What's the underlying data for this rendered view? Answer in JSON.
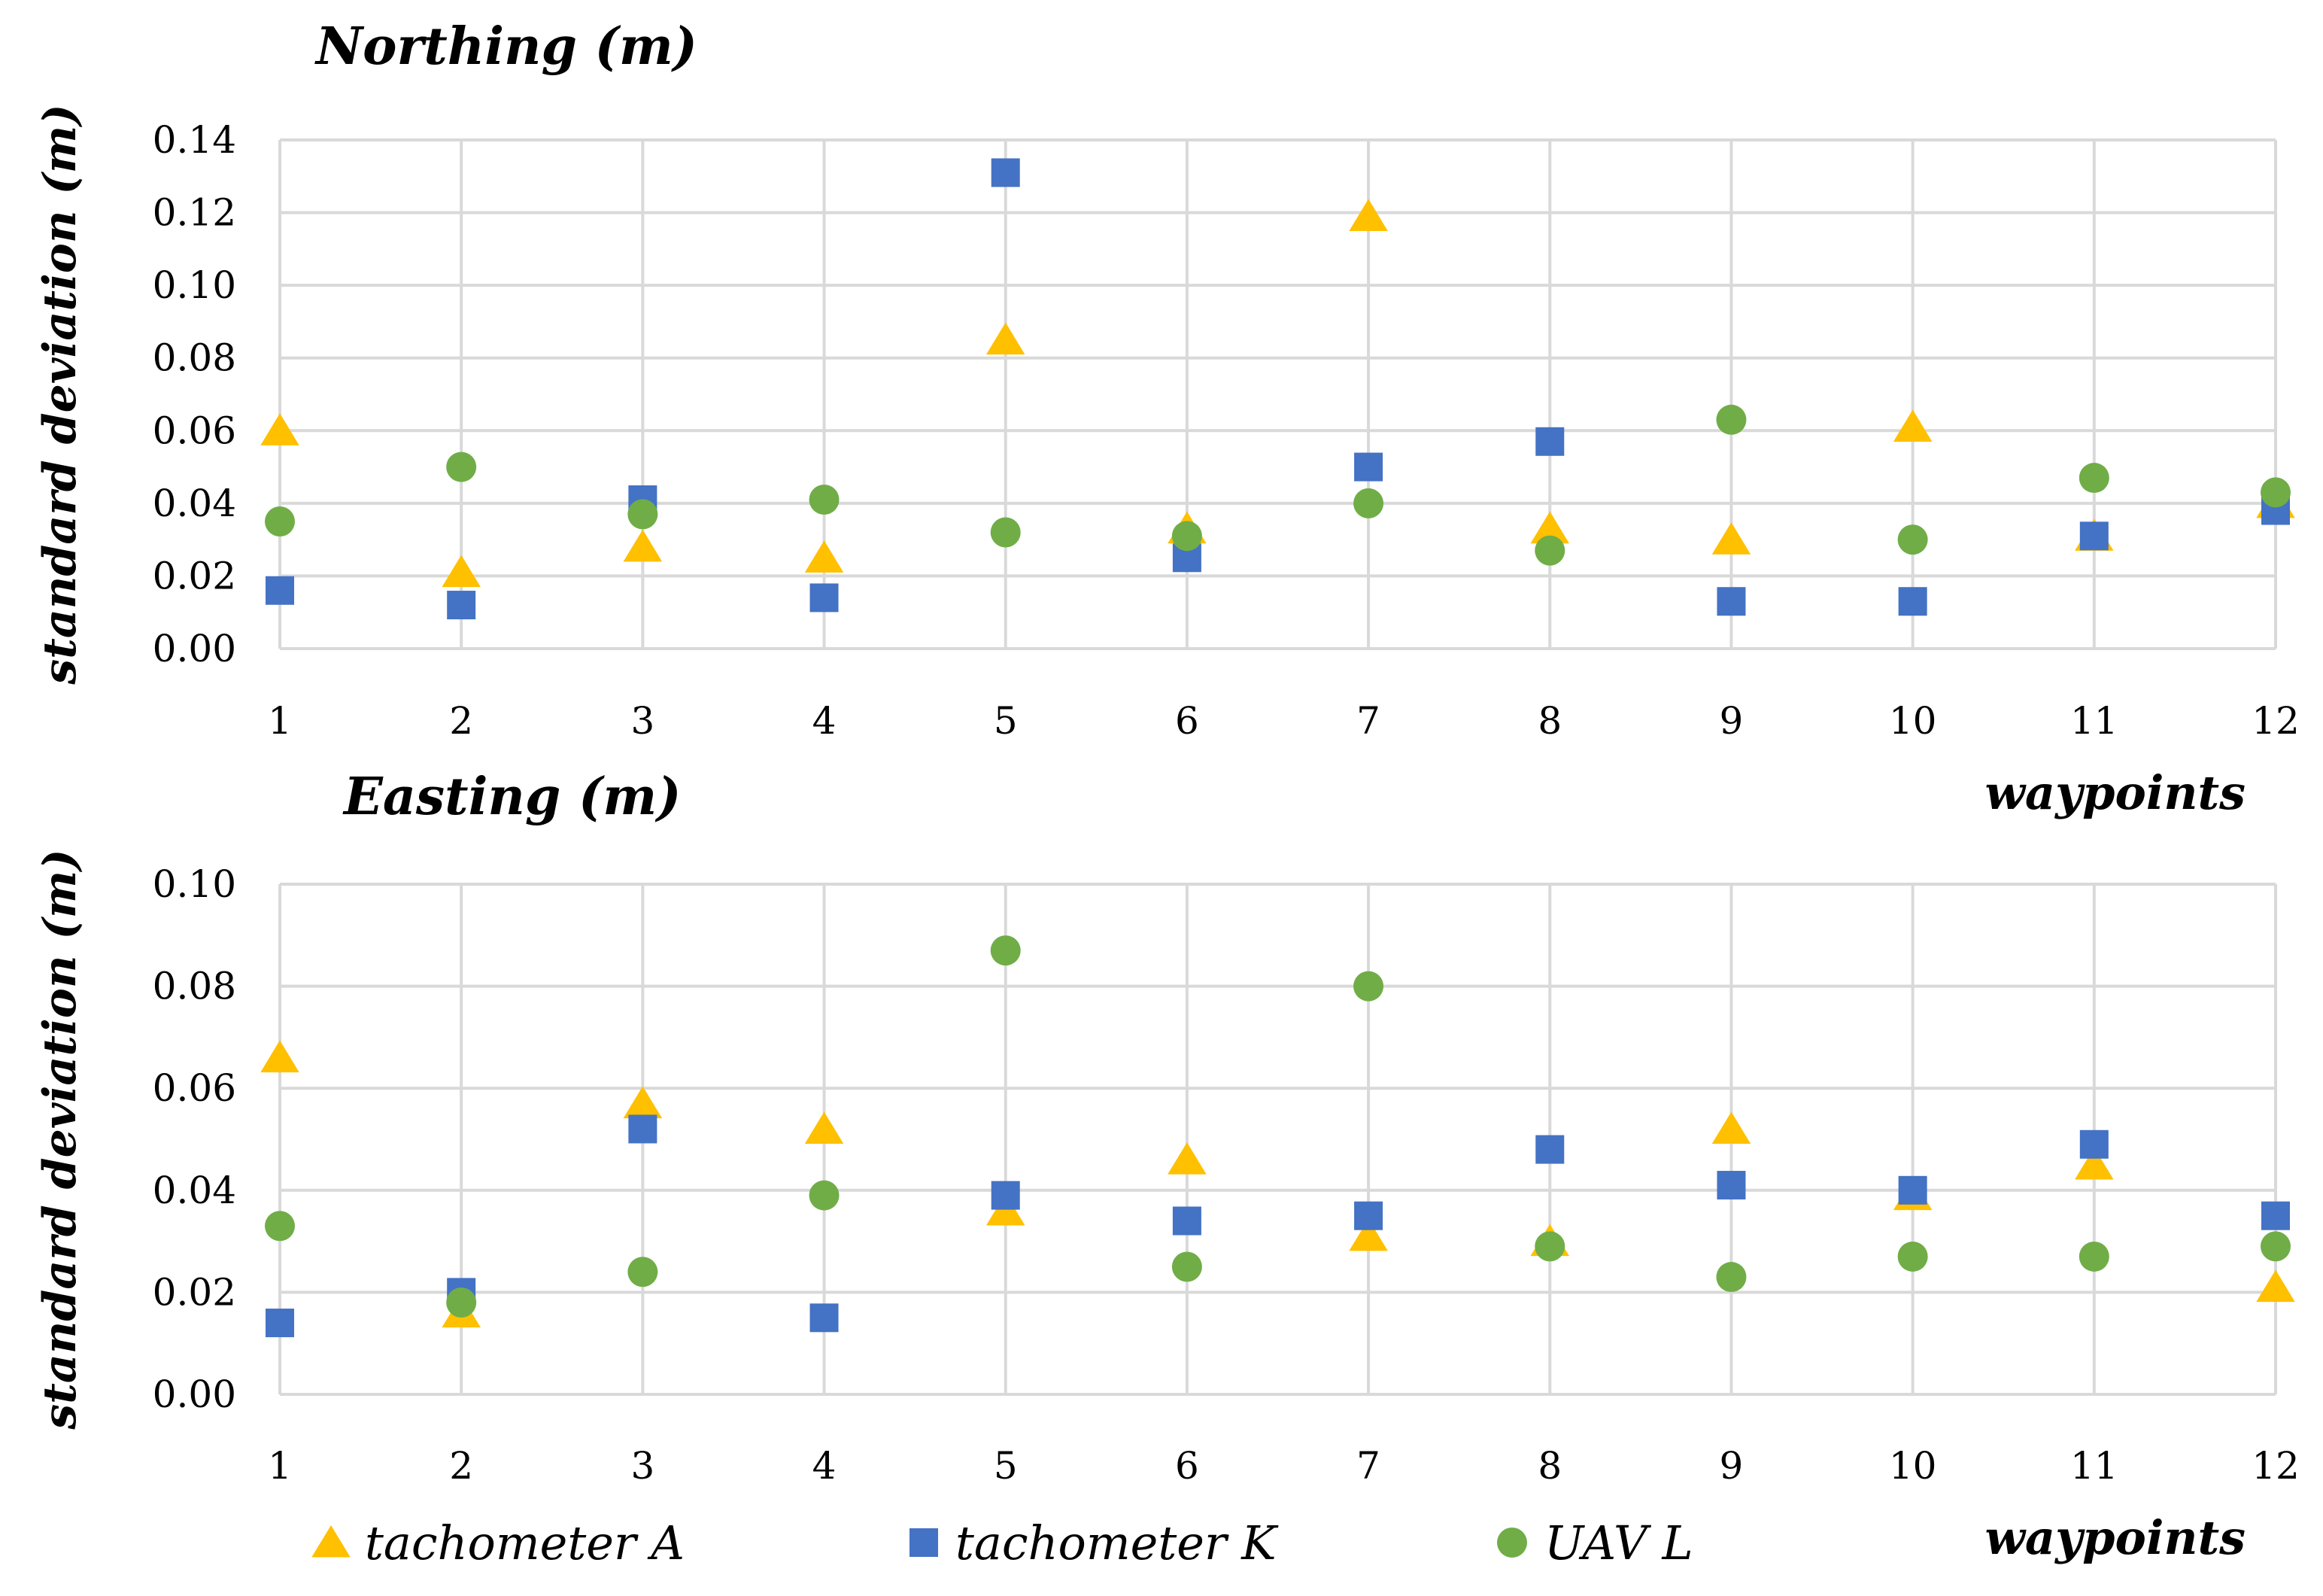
{
  "colors": {
    "tachometer_A": "#FFC000",
    "tachometer_K": "#4472C4",
    "UAV_L": "#70AD47"
  },
  "legend": [
    {
      "label": "tachometer A",
      "shape": "triangle",
      "color": "#FFC000"
    },
    {
      "label": "tachometer K",
      "shape": "square",
      "color": "#4472C4"
    },
    {
      "label": "UAV L",
      "shape": "circle",
      "color": "#70AD47"
    }
  ],
  "chart_data": [
    {
      "type": "scatter",
      "title": "Northing (m)",
      "xlabel": "waypoints",
      "ylabel": "standard deviation (m)",
      "ylim": [
        0,
        0.14
      ],
      "yticks": [
        "0.00",
        "0.02",
        "0.04",
        "0.06",
        "0.08",
        "0.10",
        "0.12",
        "0.14"
      ],
      "ytick_values": [
        0,
        0.02,
        0.04,
        0.06,
        0.08,
        0.1,
        0.12,
        0.14
      ],
      "x": [
        1,
        2,
        3,
        4,
        5,
        6,
        7,
        8,
        9,
        10,
        11,
        12
      ],
      "xticks": [
        "1",
        "2",
        "3",
        "4",
        "5",
        "6",
        "7",
        "8",
        "9",
        "10",
        "11",
        "12"
      ],
      "series": [
        {
          "name": "tachometer A",
          "values": [
            0.06,
            0.021,
            0.028,
            0.025,
            0.085,
            0.033,
            0.119,
            0.033,
            0.03,
            0.061,
            0.031,
            0.04
          ]
        },
        {
          "name": "tachometer K",
          "values": [
            0.016,
            0.012,
            0.041,
            0.014,
            0.131,
            0.025,
            0.05,
            0.057,
            0.013,
            0.013,
            0.031,
            0.038
          ]
        },
        {
          "name": "UAV L",
          "values": [
            0.035,
            0.05,
            0.037,
            0.041,
            0.032,
            0.031,
            0.04,
            0.027,
            0.063,
            0.03,
            0.047,
            0.043
          ]
        }
      ]
    },
    {
      "type": "scatter",
      "title": "Easting (m)",
      "xlabel": "waypoints",
      "ylabel": "standard deviation (m)",
      "ylim": [
        0,
        0.1
      ],
      "yticks": [
        "0.00",
        "0.02",
        "0.04",
        "0.06",
        "0.08",
        "0.10"
      ],
      "ytick_values": [
        0,
        0.02,
        0.04,
        0.06,
        0.08,
        0.1
      ],
      "x": [
        1,
        2,
        3,
        4,
        5,
        6,
        7,
        8,
        9,
        10,
        11,
        12
      ],
      "xticks": [
        "1",
        "2",
        "3",
        "4",
        "5",
        "6",
        "7",
        "8",
        "9",
        "10",
        "11",
        "12"
      ],
      "series": [
        {
          "name": "tachometer A",
          "values": [
            0.066,
            0.016,
            0.057,
            0.052,
            0.036,
            0.046,
            0.031,
            0.03,
            0.052,
            0.039,
            0.045,
            0.021
          ]
        },
        {
          "name": "tachometer K",
          "values": [
            0.014,
            0.02,
            0.052,
            0.015,
            0.039,
            0.034,
            0.035,
            0.048,
            0.041,
            0.04,
            0.049,
            0.035
          ]
        },
        {
          "name": "UAV L",
          "values": [
            0.033,
            0.018,
            0.024,
            0.039,
            0.087,
            0.025,
            0.08,
            0.029,
            0.023,
            0.027,
            0.027,
            0.029
          ]
        }
      ]
    }
  ]
}
